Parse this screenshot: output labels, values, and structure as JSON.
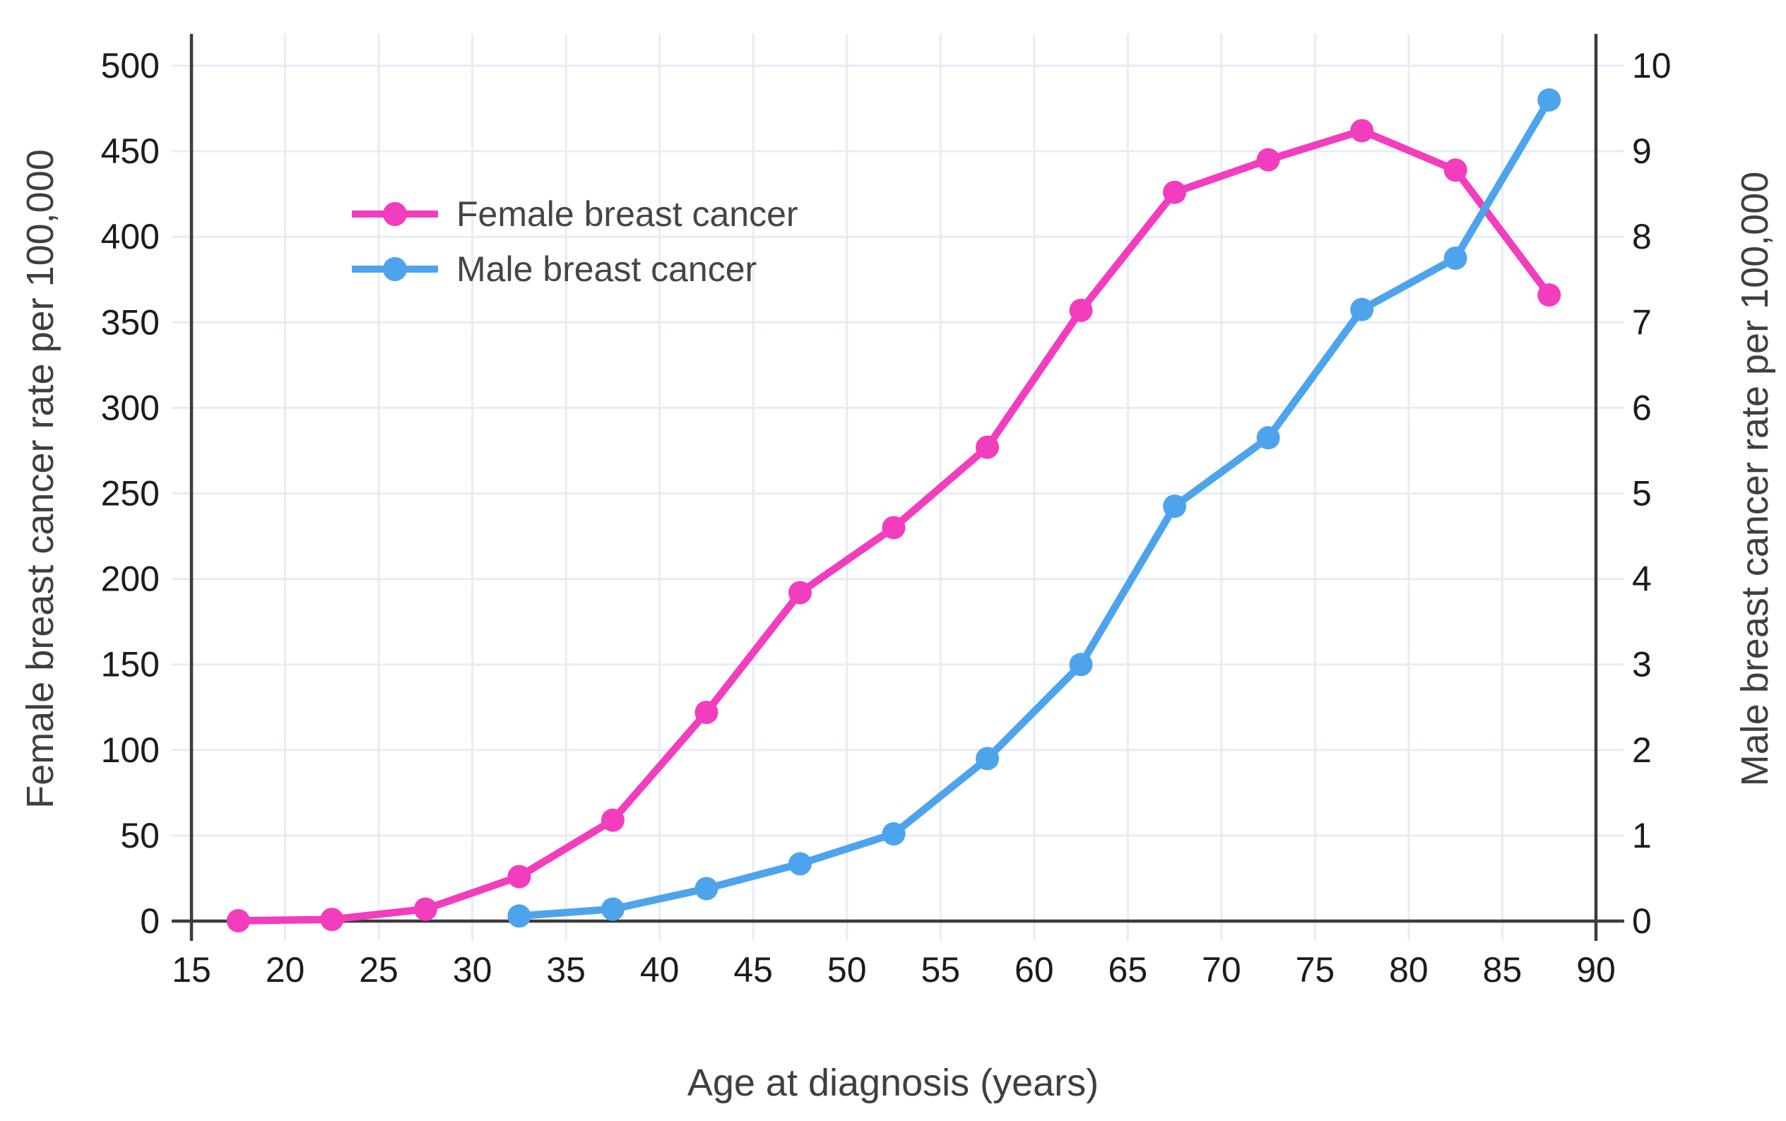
{
  "colors": {
    "female": "#f23dbe",
    "male": "#4da4ec",
    "grid": "#e9ebf5",
    "axis": "#3c3c3c",
    "tick_text": "#1c1c1c",
    "title_text": "#3f3f3f",
    "legend_text": "#454545",
    "background": "#ffffff"
  },
  "legend": {
    "items": [
      {
        "label": "Female breast cancer",
        "color_key": "female"
      },
      {
        "label": "Male breast cancer",
        "color_key": "male"
      }
    ]
  },
  "chart_data": {
    "type": "line",
    "title": "",
    "xlabel": "Age at diagnosis (years)",
    "ylabel_left": "Female breast cancer rate per 100,000",
    "ylabel_right": "Male breast cancer rate per 100,000",
    "x_axis": {
      "min": 15,
      "max": 90,
      "tick_step": 5,
      "tick_labels": [
        "15",
        "20",
        "25",
        "30",
        "35",
        "40",
        "45",
        "50",
        "55",
        "60",
        "65",
        "70",
        "75",
        "80",
        "85",
        "90"
      ]
    },
    "y_axis_left": {
      "min": 0,
      "max": 500,
      "tick_step": 50,
      "tick_labels": [
        "0",
        "50",
        "100",
        "150",
        "200",
        "250",
        "300",
        "350",
        "400",
        "450",
        "500"
      ]
    },
    "y_axis_right": {
      "min": 0,
      "max": 10,
      "tick_step": 1,
      "tick_labels": [
        "0",
        "1",
        "2",
        "3",
        "4",
        "5",
        "6",
        "7",
        "8",
        "9",
        "10"
      ]
    },
    "grid": true,
    "legend_position": "upper-left-inside",
    "series": [
      {
        "name": "Female breast cancer",
        "axis": "left",
        "color_key": "female",
        "x": [
          17.5,
          22.5,
          27.5,
          32.5,
          37.5,
          42.5,
          47.5,
          52.5,
          57.5,
          62.5,
          67.5,
          72.5,
          77.5,
          82.5,
          87.5
        ],
        "values": [
          0.2,
          1,
          7,
          26,
          59,
          122,
          192,
          230,
          277,
          357,
          426,
          445,
          462,
          439,
          366
        ]
      },
      {
        "name": "Male breast cancer",
        "axis": "right",
        "color_key": "male",
        "x": [
          32.5,
          37.5,
          42.5,
          47.5,
          52.5,
          57.5,
          62.5,
          67.5,
          72.5,
          77.5,
          82.5,
          87.5
        ],
        "values": [
          0.06,
          0.14,
          0.38,
          0.67,
          1.02,
          1.9,
          3.0,
          4.85,
          5.65,
          7.15,
          7.75,
          9.6
        ]
      }
    ]
  }
}
